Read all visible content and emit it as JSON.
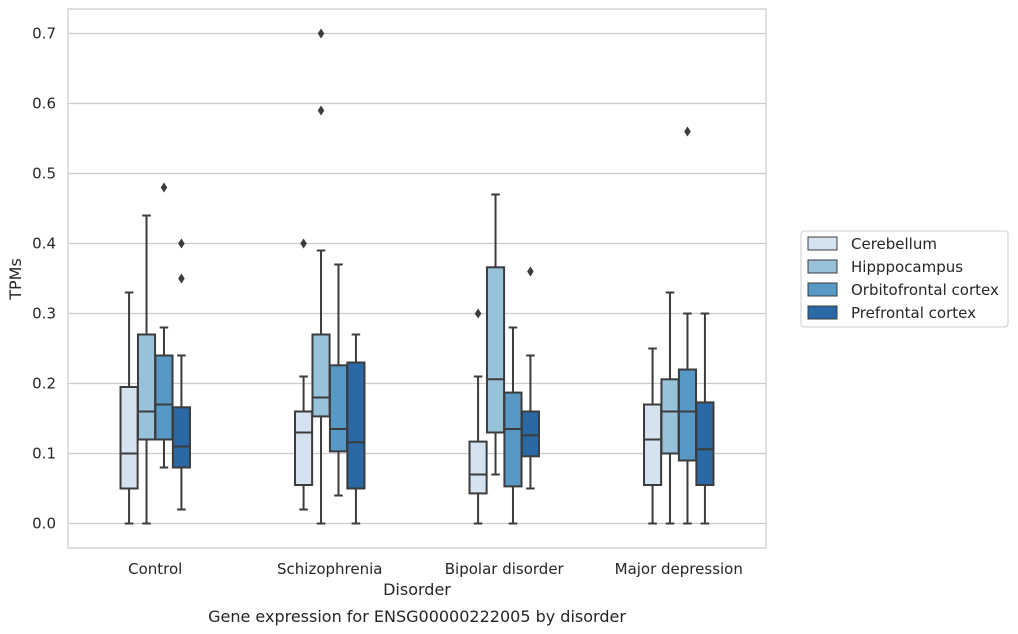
{
  "chart_data": {
    "type": "box",
    "xlabel": "Disorder",
    "ylabel": "TPMs",
    "caption": "Gene expression for ENSG00000222005 by disorder",
    "ylim": [
      -0.035,
      0.735
    ],
    "yticks": [
      "0.0",
      "0.1",
      "0.2",
      "0.3",
      "0.4",
      "0.5",
      "0.6",
      "0.7"
    ],
    "grid": "horizontal",
    "legend_placement": "right-center",
    "categories": [
      "Control",
      "Schizophrenia",
      "Bipolar disorder",
      "Major depression"
    ],
    "series": [
      {
        "name": "Cerebellum",
        "color": "#d5e3f1",
        "boxes": [
          {
            "min": 0.0,
            "q1": 0.05,
            "median": 0.1,
            "q3": 0.195,
            "max": 0.33,
            "outliers": []
          },
          {
            "min": 0.02,
            "q1": 0.055,
            "median": 0.13,
            "q3": 0.16,
            "max": 0.21,
            "outliers": [
              0.4
            ]
          },
          {
            "min": 0.0,
            "q1": 0.043,
            "median": 0.07,
            "q3": 0.117,
            "max": 0.21,
            "outliers": [
              0.3
            ]
          },
          {
            "min": 0.0,
            "q1": 0.055,
            "median": 0.12,
            "q3": 0.17,
            "max": 0.25,
            "outliers": []
          }
        ]
      },
      {
        "name": "Hipppocampus",
        "color": "#98c1da",
        "boxes": [
          {
            "min": 0.0,
            "q1": 0.12,
            "median": 0.16,
            "q3": 0.27,
            "max": 0.44,
            "outliers": []
          },
          {
            "min": 0.0,
            "q1": 0.153,
            "median": 0.18,
            "q3": 0.27,
            "max": 0.39,
            "outliers": [
              0.59,
              0.7
            ]
          },
          {
            "min": 0.07,
            "q1": 0.13,
            "median": 0.206,
            "q3": 0.366,
            "max": 0.47,
            "outliers": []
          },
          {
            "min": 0.0,
            "q1": 0.1,
            "median": 0.16,
            "q3": 0.206,
            "max": 0.33,
            "outliers": []
          }
        ]
      },
      {
        "name": "Orbitofrontal cortex",
        "color": "#5798c5",
        "boxes": [
          {
            "min": 0.08,
            "q1": 0.12,
            "median": 0.17,
            "q3": 0.24,
            "max": 0.28,
            "outliers": [
              0.48
            ]
          },
          {
            "min": 0.04,
            "q1": 0.103,
            "median": 0.135,
            "q3": 0.226,
            "max": 0.37,
            "outliers": []
          },
          {
            "min": 0.0,
            "q1": 0.053,
            "median": 0.135,
            "q3": 0.187,
            "max": 0.28,
            "outliers": []
          },
          {
            "min": 0.0,
            "q1": 0.09,
            "median": 0.16,
            "q3": 0.22,
            "max": 0.3,
            "outliers": [
              0.56
            ]
          }
        ]
      },
      {
        "name": "Prefrontal cortex",
        "color": "#2a68a6",
        "boxes": [
          {
            "min": 0.02,
            "q1": 0.08,
            "median": 0.11,
            "q3": 0.166,
            "max": 0.24,
            "outliers": [
              0.35,
              0.4
            ]
          },
          {
            "min": 0.0,
            "q1": 0.05,
            "median": 0.116,
            "q3": 0.23,
            "max": 0.27,
            "outliers": []
          },
          {
            "min": 0.05,
            "q1": 0.096,
            "median": 0.126,
            "q3": 0.16,
            "max": 0.24,
            "outliers": [
              0.36
            ]
          },
          {
            "min": 0.0,
            "q1": 0.055,
            "median": 0.106,
            "q3": 0.173,
            "max": 0.3,
            "outliers": []
          }
        ]
      }
    ]
  }
}
